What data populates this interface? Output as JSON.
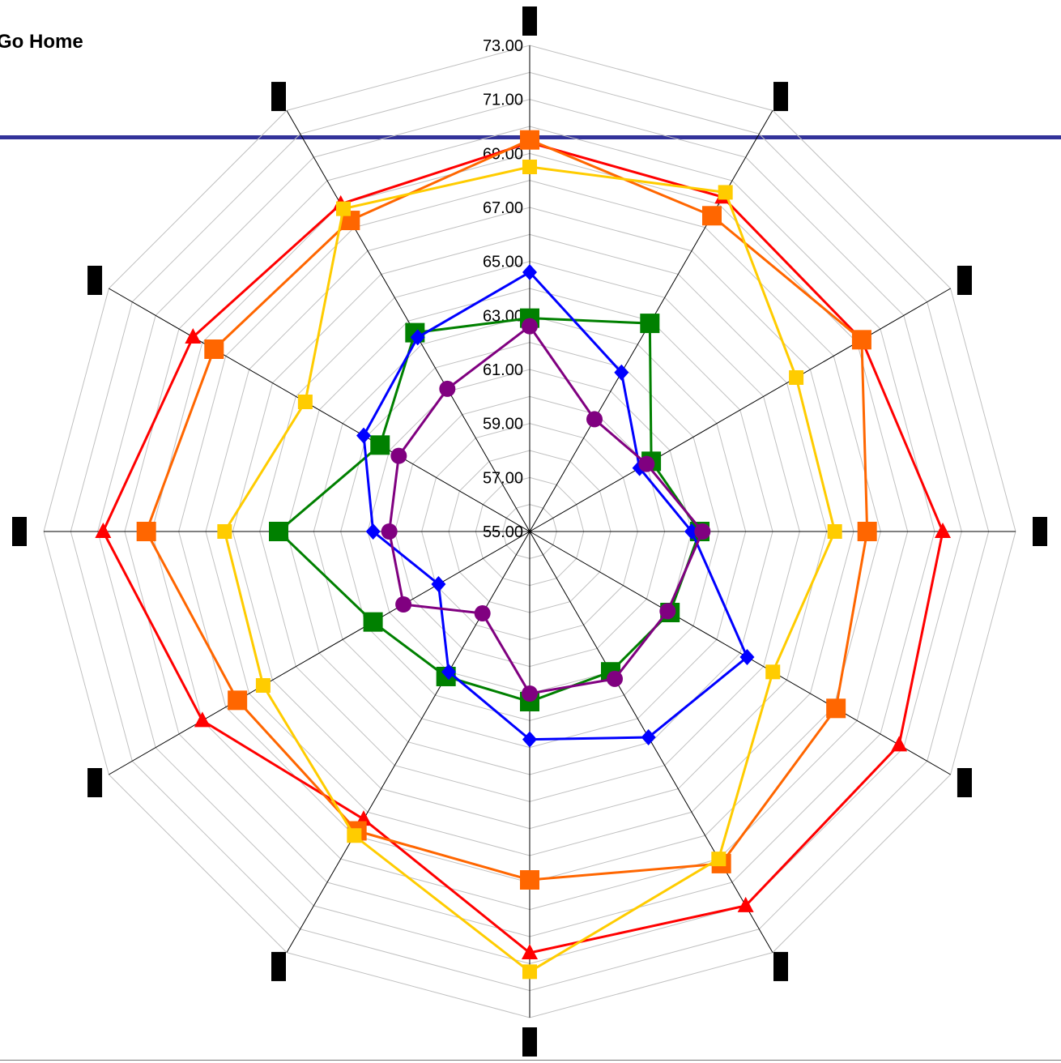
{
  "page": {
    "link_label": "Go Home"
  },
  "chart_data": {
    "type": "radar",
    "title": "",
    "axis_count": 12,
    "axis_labels": [
      "",
      "",
      "",
      "",
      "",
      "",
      "",
      "",
      "",
      "",
      "",
      ""
    ],
    "ylim": [
      55,
      73
    ],
    "ticks": [
      "55.00",
      "57.00",
      "59.00",
      "61.00",
      "63.00",
      "65.00",
      "67.00",
      "69.00",
      "71.00",
      "73.00"
    ],
    "grid": true,
    "series": [
      {
        "color": "#ff0000",
        "marker": "triangle",
        "values": [
          69.4,
          69.3,
          69.2,
          70.3,
          70.8,
          71.0,
          70.6,
          67.3,
          69.0,
          70.8,
          69.4,
          69.0
        ]
      },
      {
        "color": "#ff6600",
        "marker": "square",
        "values": [
          69.5,
          68.5,
          69.2,
          67.5,
          68.1,
          69.2,
          67.9,
          67.8,
          67.5,
          69.2,
          68.5,
          68.3
        ]
      },
      {
        "color": "#ffcc00",
        "marker": "square",
        "values": [
          68.5,
          69.5,
          66.4,
          66.3,
          65.4,
          69.0,
          71.3,
          68.0,
          66.4,
          66.3,
          64.6,
          68.8
        ]
      },
      {
        "color": "#008000",
        "marker": "square",
        "values": [
          62.9,
          63.9,
          60.2,
          61.3,
          61.0,
          61.0,
          61.3,
          61.2,
          61.7,
          64.3,
          61.4,
          63.5
        ]
      },
      {
        "color": "#0000ff",
        "marker": "diamond",
        "values": [
          64.6,
          61.8,
          59.7,
          61.0,
          64.3,
          63.8,
          62.7,
          61.0,
          58.9,
          60.8,
          62.1,
          63.3
        ]
      },
      {
        "color": "#800080",
        "marker": "circle",
        "values": [
          62.6,
          59.8,
          60.0,
          61.4,
          60.9,
          61.3,
          61.0,
          58.5,
          60.4,
          60.2,
          60.6,
          61.1
        ]
      }
    ]
  }
}
